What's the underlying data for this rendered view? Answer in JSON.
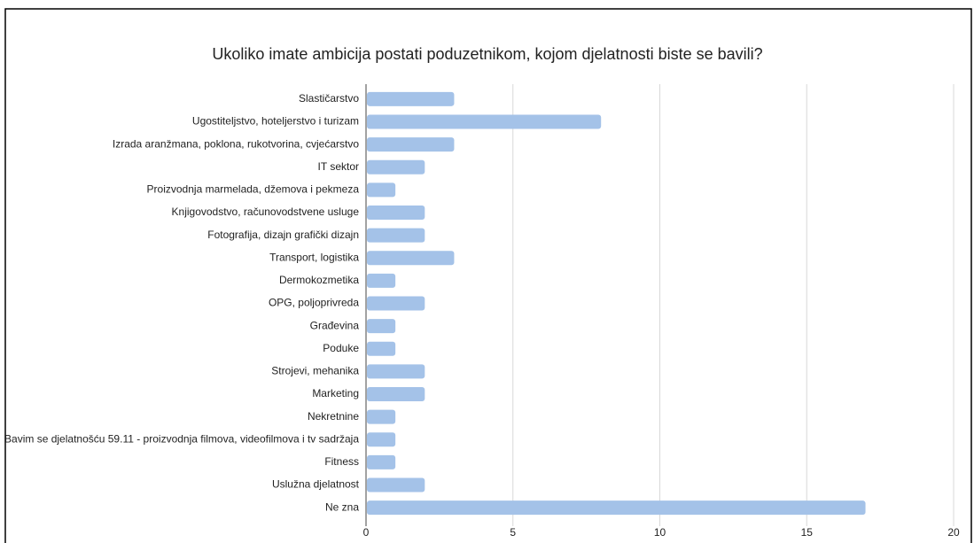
{
  "chart_data": {
    "type": "bar",
    "orientation": "horizontal",
    "title": "Ukoliko imate ambicija postati poduzetnikom, kojom djelatnosti biste se bavili?",
    "categories": [
      "Slastičarstvo",
      "Ugostiteljstvo, hoteljerstvo i turizam",
      "Izrada aranžmana, poklona, rukotvorina, cvjećarstvo",
      "IT sektor",
      "Proizvodnja marmelada, džemova i pekmeza",
      "Knjigovodstvo, računovodstvene usluge",
      "Fotografija, dizajn grafički dizajn",
      "Transport, logistika",
      "Dermokozmetika",
      "OPG, poljoprivreda",
      "Građevina",
      "Poduke",
      "Strojevi, mehanika",
      "Marketing",
      "Nekretnine",
      "Bavim se djelatnošću 59.11 - proizvodnja filmova, videofilmova i tv sadržaja",
      "Fitness",
      "Uslužna djelatnost",
      "Ne zna"
    ],
    "values": [
      3,
      8,
      3,
      2,
      1,
      2,
      2,
      3,
      1,
      2,
      1,
      1,
      2,
      2,
      1,
      1,
      1,
      2,
      17
    ],
    "color": "#a4c2e8",
    "xlim": [
      0,
      20
    ],
    "xticks": [
      0,
      5,
      10,
      15,
      20
    ],
    "grid": true
  }
}
